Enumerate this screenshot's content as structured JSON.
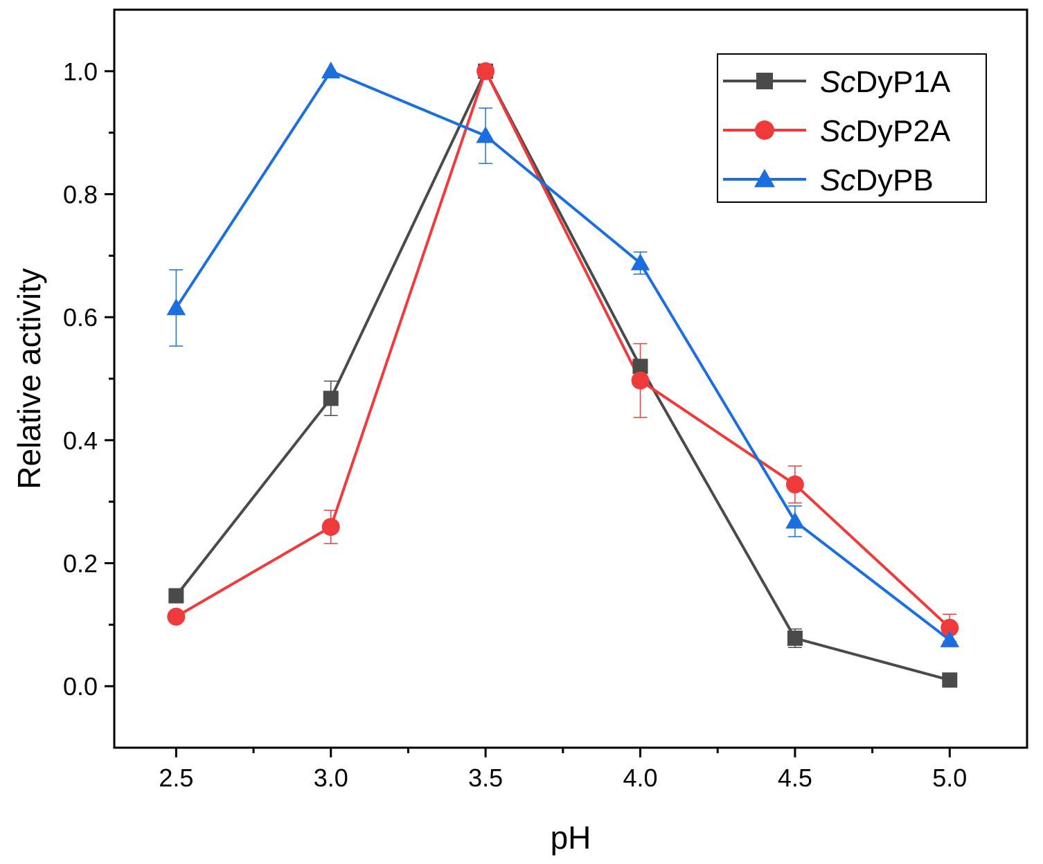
{
  "chart_data": {
    "type": "line",
    "title": "",
    "xlabel": "pH",
    "ylabel": "Relative activity",
    "x": [
      2.5,
      3.0,
      3.5,
      4.0,
      4.5,
      5.0
    ],
    "x_tick_labels": [
      "2.5",
      "3.0",
      "3.5",
      "4.0",
      "4.5",
      "5.0"
    ],
    "y_tick_labels": [
      "0.0",
      "0.2",
      "0.4",
      "0.6",
      "0.8",
      "1.0"
    ],
    "xlim": [
      2.3,
      5.25
    ],
    "ylim": [
      -0.1,
      1.1
    ],
    "grid": false,
    "legend_position": "top-right",
    "series": [
      {
        "name_italic": "Sc",
        "name_rest": "DyP1A",
        "color": "#4a4a4a",
        "marker": "square",
        "values": [
          0.147,
          0.468,
          1.0,
          0.52,
          0.078,
          0.01
        ],
        "errors": [
          0.0,
          0.028,
          0.0,
          0.0,
          0.015,
          0.0
        ]
      },
      {
        "name_italic": "Sc",
        "name_rest": "DyP2A",
        "color": "#ef3b3b",
        "marker": "circle",
        "values": [
          0.113,
          0.259,
          1.0,
          0.497,
          0.328,
          0.095
        ],
        "errors": [
          0.0,
          0.027,
          0.0,
          0.06,
          0.03,
          0.022
        ]
      },
      {
        "name_italic": "Sc",
        "name_rest": "DyPB",
        "color": "#1a6ee0",
        "marker": "triangle",
        "values": [
          0.615,
          1.0,
          0.895,
          0.688,
          0.268,
          0.075
        ],
        "errors": [
          0.062,
          0.0,
          0.045,
          0.018,
          0.025,
          0.0
        ]
      }
    ]
  }
}
